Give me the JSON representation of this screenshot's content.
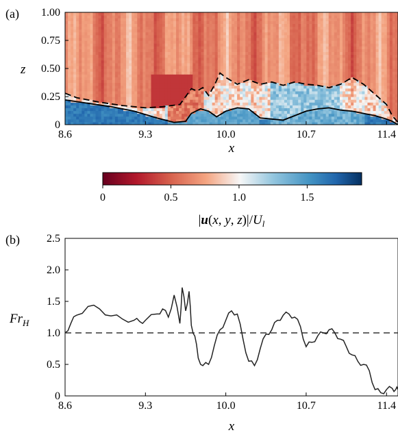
{
  "chart_data": [
    {
      "panel_label": "(a)",
      "type": "heatmap",
      "xlabel": "x",
      "ylabel": "z",
      "xlim": [
        8.6,
        11.5
      ],
      "ylim": [
        0,
        1.0
      ],
      "xticks": [
        "8.6",
        "9.3",
        "10.0",
        "10.7",
        "11.4"
      ],
      "yticks": [
        "0",
        "0.25",
        "0.50",
        "0.75",
        "1.00"
      ],
      "colormap": "RdBu",
      "colorbar": {
        "label": "|u(x, y, z)|/U_l",
        "range": [
          0,
          1.9
        ],
        "ticks": [
          "0",
          "0.5",
          "1.0",
          "1.5"
        ]
      },
      "series": [
        {
          "style": "solid",
          "x": [
            8.6,
            8.8,
            9.0,
            9.2,
            9.4,
            9.55,
            9.65,
            9.7,
            9.78,
            9.85,
            9.92,
            10.0,
            10.1,
            10.2,
            10.3,
            10.4,
            10.5,
            10.6,
            10.7,
            10.8,
            10.9,
            11.0,
            11.1,
            11.2,
            11.3,
            11.4,
            11.45,
            11.5
          ],
          "y": [
            0.22,
            0.19,
            0.16,
            0.12,
            0.06,
            0.02,
            0.03,
            0.1,
            0.14,
            0.12,
            0.07,
            0.12,
            0.15,
            0.14,
            0.06,
            0.05,
            0.04,
            0.08,
            0.12,
            0.14,
            0.15,
            0.13,
            0.12,
            0.1,
            0.08,
            0.05,
            0.03,
            0.0
          ]
        },
        {
          "style": "dashed",
          "x": [
            8.6,
            8.7,
            8.9,
            9.1,
            9.3,
            9.45,
            9.6,
            9.65,
            9.7,
            9.75,
            9.8,
            9.85,
            9.9,
            9.95,
            10.0,
            10.1,
            10.2,
            10.3,
            10.4,
            10.5,
            10.6,
            10.7,
            10.8,
            10.9,
            11.0,
            11.1,
            11.2,
            11.3,
            11.4,
            11.45,
            11.5
          ],
          "y": [
            0.28,
            0.24,
            0.2,
            0.17,
            0.15,
            0.16,
            0.18,
            0.25,
            0.32,
            0.3,
            0.33,
            0.26,
            0.35,
            0.46,
            0.42,
            0.36,
            0.4,
            0.36,
            0.38,
            0.35,
            0.38,
            0.36,
            0.35,
            0.33,
            0.36,
            0.42,
            0.36,
            0.27,
            0.18,
            0.08,
            0.02
          ]
        }
      ]
    },
    {
      "panel_label": "(b)",
      "type": "line",
      "xlabel": "x",
      "ylabel": "Fr_H",
      "xlim": [
        8.6,
        11.5
      ],
      "ylim": [
        0,
        2.5
      ],
      "xticks": [
        "8.6",
        "9.3",
        "10.0",
        "10.7",
        "11.4"
      ],
      "yticks": [
        "0",
        "0.5",
        "1.0",
        "1.5",
        "2.0",
        "2.5"
      ],
      "reference_line": {
        "y": 1.0,
        "style": "dashed"
      },
      "series": [
        {
          "x": [
            8.6,
            8.65,
            8.7,
            8.8,
            8.9,
            9.0,
            9.1,
            9.2,
            9.25,
            9.3,
            9.4,
            9.45,
            9.5,
            9.55,
            9.6,
            9.62,
            9.65,
            9.68,
            9.7,
            9.73,
            9.76,
            9.8,
            9.85,
            9.9,
            9.95,
            10.0,
            10.05,
            10.1,
            10.15,
            10.2,
            10.25,
            10.3,
            10.35,
            10.4,
            10.45,
            10.5,
            10.55,
            10.6,
            10.65,
            10.7,
            10.75,
            10.8,
            10.85,
            10.9,
            10.95,
            11.0,
            11.05,
            11.1,
            11.15,
            11.2,
            11.25,
            11.3,
            11.35,
            11.4,
            11.45,
            11.48,
            11.5
          ],
          "y": [
            1.0,
            1.15,
            1.28,
            1.42,
            1.38,
            1.27,
            1.22,
            1.2,
            1.18,
            1.2,
            1.3,
            1.38,
            1.25,
            1.6,
            1.15,
            1.72,
            1.35,
            1.66,
            1.12,
            0.95,
            0.6,
            0.48,
            0.5,
            0.8,
            1.05,
            1.2,
            1.35,
            1.3,
            0.9,
            0.55,
            0.48,
            0.75,
            0.98,
            1.05,
            1.2,
            1.28,
            1.3,
            1.25,
            1.1,
            0.78,
            0.85,
            0.95,
            1.0,
            1.05,
            1.0,
            0.9,
            0.78,
            0.65,
            0.55,
            0.5,
            0.4,
            0.1,
            0.05,
            0.1,
            0.12,
            0.1,
            0.1
          ]
        }
      ]
    }
  ]
}
